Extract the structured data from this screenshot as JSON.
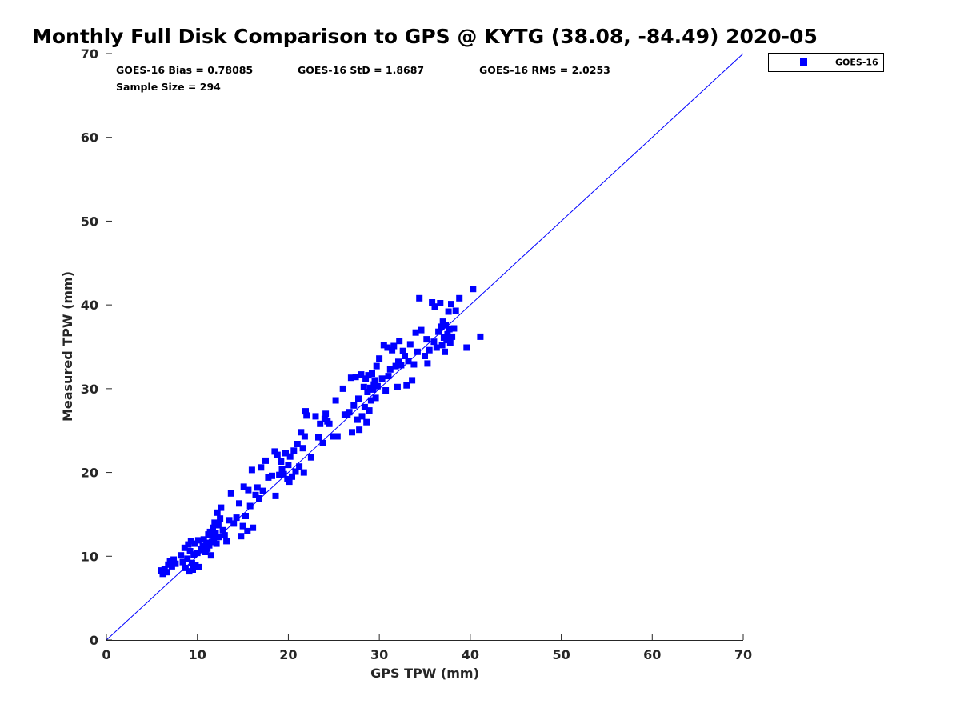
{
  "chart_data": {
    "type": "scatter",
    "title": "Monthly Full Disk Comparison to GPS @ KYTG (38.08, -84.49) 2020-05",
    "xlabel": "GPS TPW (mm)",
    "ylabel": "Measured TPW (mm)",
    "xlim": [
      0,
      70
    ],
    "ylim": [
      0,
      70
    ],
    "xticks": [
      "0",
      "10",
      "20",
      "30",
      "40",
      "50",
      "60",
      "70"
    ],
    "yticks": [
      "0",
      "10",
      "20",
      "30",
      "40",
      "50",
      "60",
      "70"
    ],
    "grid": false,
    "legend_position": "outside-top-right",
    "stats": {
      "bias": "GOES-16 Bias = 0.78085",
      "std": "GOES-16 StD = 1.8687",
      "rms": "GOES-16 RMS = 2.0253",
      "sample": "Sample Size = 294"
    },
    "reference_line": {
      "from": [
        0,
        0
      ],
      "to": [
        70,
        70
      ],
      "color": "#0000ff"
    },
    "series": [
      {
        "name": "GOES-16",
        "color": "#0000ff",
        "marker": "square",
        "points": [
          [
            6.0,
            8.3
          ],
          [
            6.2,
            7.9
          ],
          [
            6.4,
            8.5
          ],
          [
            6.6,
            8.1
          ],
          [
            6.8,
            9.0
          ],
          [
            7.0,
            9.4
          ],
          [
            7.2,
            8.8
          ],
          [
            7.4,
            9.6
          ],
          [
            7.6,
            9.1
          ],
          [
            8.2,
            10.1
          ],
          [
            8.4,
            9.3
          ],
          [
            8.6,
            11.0
          ],
          [
            8.7,
            8.6
          ],
          [
            8.9,
            9.7
          ],
          [
            9.0,
            11.4
          ],
          [
            9.1,
            8.2
          ],
          [
            9.2,
            10.6
          ],
          [
            9.3,
            11.8
          ],
          [
            9.4,
            9.2
          ],
          [
            9.5,
            8.4
          ],
          [
            9.6,
            10.2
          ],
          [
            9.7,
            11.5
          ],
          [
            9.8,
            8.9
          ],
          [
            10.0,
            10.4
          ],
          [
            10.1,
            11.9
          ],
          [
            10.2,
            8.7
          ],
          [
            10.4,
            10.8
          ],
          [
            10.6,
            11.2
          ],
          [
            10.7,
            12.0
          ],
          [
            10.9,
            10.5
          ],
          [
            11.0,
            11.6
          ],
          [
            11.1,
            10.9
          ],
          [
            11.2,
            12.6
          ],
          [
            11.3,
            11.3
          ],
          [
            11.4,
            12.9
          ],
          [
            11.5,
            10.1
          ],
          [
            11.6,
            11.7
          ],
          [
            11.7,
            13.4
          ],
          [
            11.8,
            12.2
          ],
          [
            11.9,
            14.0
          ],
          [
            12.0,
            12.8
          ],
          [
            12.1,
            11.5
          ],
          [
            12.2,
            15.2
          ],
          [
            12.3,
            13.7
          ],
          [
            12.4,
            12.3
          ],
          [
            12.5,
            14.5
          ],
          [
            12.6,
            15.8
          ],
          [
            12.8,
            13.1
          ],
          [
            13.0,
            12.5
          ],
          [
            13.2,
            11.8
          ],
          [
            13.5,
            14.3
          ],
          [
            13.7,
            17.5
          ],
          [
            14.0,
            13.9
          ],
          [
            14.3,
            14.6
          ],
          [
            14.6,
            16.3
          ],
          [
            14.8,
            12.4
          ],
          [
            15.0,
            13.6
          ],
          [
            15.1,
            18.3
          ],
          [
            15.3,
            14.8
          ],
          [
            15.5,
            13.0
          ],
          [
            15.6,
            17.9
          ],
          [
            15.8,
            16.0
          ],
          [
            16.0,
            20.3
          ],
          [
            16.1,
            13.4
          ],
          [
            16.4,
            17.3
          ],
          [
            16.6,
            18.2
          ],
          [
            16.8,
            16.9
          ],
          [
            17.0,
            20.6
          ],
          [
            17.2,
            17.8
          ],
          [
            17.5,
            21.4
          ],
          [
            17.8,
            19.4
          ],
          [
            18.2,
            19.6
          ],
          [
            18.5,
            22.5
          ],
          [
            18.6,
            17.2
          ],
          [
            18.8,
            22.1
          ],
          [
            19.0,
            19.7
          ],
          [
            19.2,
            21.3
          ],
          [
            19.3,
            20.4
          ],
          [
            19.5,
            19.8
          ],
          [
            19.7,
            22.3
          ],
          [
            19.9,
            19.2
          ],
          [
            20.0,
            20.9
          ],
          [
            20.1,
            18.9
          ],
          [
            20.2,
            21.9
          ],
          [
            20.4,
            19.5
          ],
          [
            20.6,
            22.6
          ],
          [
            20.8,
            20.1
          ],
          [
            21.0,
            23.4
          ],
          [
            21.2,
            20.7
          ],
          [
            21.4,
            24.8
          ],
          [
            21.6,
            22.9
          ],
          [
            21.7,
            20.0
          ],
          [
            21.8,
            24.3
          ],
          [
            21.9,
            27.3
          ],
          [
            22.0,
            26.8
          ],
          [
            22.5,
            21.8
          ],
          [
            23.0,
            26.7
          ],
          [
            23.3,
            24.2
          ],
          [
            23.5,
            25.8
          ],
          [
            23.8,
            23.5
          ],
          [
            24.0,
            26.4
          ],
          [
            24.1,
            27.0
          ],
          [
            24.3,
            26.1
          ],
          [
            24.5,
            25.8
          ],
          [
            24.9,
            24.3
          ],
          [
            25.2,
            28.6
          ],
          [
            25.4,
            24.3
          ],
          [
            26.0,
            30.0
          ],
          [
            26.2,
            26.9
          ],
          [
            26.5,
            26.9
          ],
          [
            26.7,
            27.2
          ],
          [
            26.9,
            31.3
          ],
          [
            27.0,
            24.8
          ],
          [
            27.2,
            28.0
          ],
          [
            27.4,
            31.4
          ],
          [
            27.6,
            26.3
          ],
          [
            27.7,
            28.8
          ],
          [
            27.8,
            25.1
          ],
          [
            28.0,
            31.7
          ],
          [
            28.1,
            26.7
          ],
          [
            28.3,
            30.2
          ],
          [
            28.4,
            27.8
          ],
          [
            28.5,
            31.2
          ],
          [
            28.6,
            26.0
          ],
          [
            28.7,
            29.6
          ],
          [
            28.8,
            31.6
          ],
          [
            28.9,
            27.4
          ],
          [
            29.0,
            30.1
          ],
          [
            29.1,
            28.6
          ],
          [
            29.2,
            31.8
          ],
          [
            29.3,
            29.9
          ],
          [
            29.4,
            30.5
          ],
          [
            29.5,
            31.0
          ],
          [
            29.6,
            28.9
          ],
          [
            29.7,
            32.7
          ],
          [
            29.8,
            30.3
          ],
          [
            30.0,
            33.6
          ],
          [
            30.3,
            31.2
          ],
          [
            30.5,
            35.2
          ],
          [
            30.7,
            29.8
          ],
          [
            30.9,
            34.9
          ],
          [
            31.0,
            31.5
          ],
          [
            31.2,
            32.3
          ],
          [
            31.4,
            34.6
          ],
          [
            31.6,
            35.1
          ],
          [
            31.8,
            32.7
          ],
          [
            32.0,
            30.2
          ],
          [
            32.1,
            33.2
          ],
          [
            32.2,
            35.7
          ],
          [
            32.4,
            32.8
          ],
          [
            32.6,
            34.5
          ],
          [
            32.8,
            33.9
          ],
          [
            33.0,
            30.4
          ],
          [
            33.2,
            33.3
          ],
          [
            33.4,
            35.3
          ],
          [
            33.6,
            31.0
          ],
          [
            33.8,
            32.9
          ],
          [
            34.0,
            36.7
          ],
          [
            34.2,
            34.4
          ],
          [
            34.4,
            40.8
          ],
          [
            34.6,
            37.0
          ],
          [
            35.0,
            33.9
          ],
          [
            35.2,
            35.9
          ],
          [
            35.3,
            33.0
          ],
          [
            35.5,
            34.6
          ],
          [
            35.8,
            40.3
          ],
          [
            36.0,
            35.6
          ],
          [
            36.1,
            39.8
          ],
          [
            36.3,
            34.9
          ],
          [
            36.5,
            36.8
          ],
          [
            36.7,
            40.2
          ],
          [
            36.8,
            37.4
          ],
          [
            36.9,
            35.2
          ],
          [
            37.0,
            38.0
          ],
          [
            37.1,
            36.1
          ],
          [
            37.2,
            34.4
          ],
          [
            37.3,
            37.6
          ],
          [
            37.4,
            35.8
          ],
          [
            37.5,
            36.5
          ],
          [
            37.6,
            39.2
          ],
          [
            37.7,
            37.1
          ],
          [
            37.8,
            35.5
          ],
          [
            37.9,
            40.1
          ],
          [
            38.0,
            36.2
          ],
          [
            38.2,
            37.2
          ],
          [
            38.4,
            39.3
          ],
          [
            38.8,
            40.8
          ],
          [
            39.6,
            34.9
          ],
          [
            40.3,
            41.9
          ],
          [
            41.1,
            36.2
          ]
        ]
      }
    ]
  }
}
